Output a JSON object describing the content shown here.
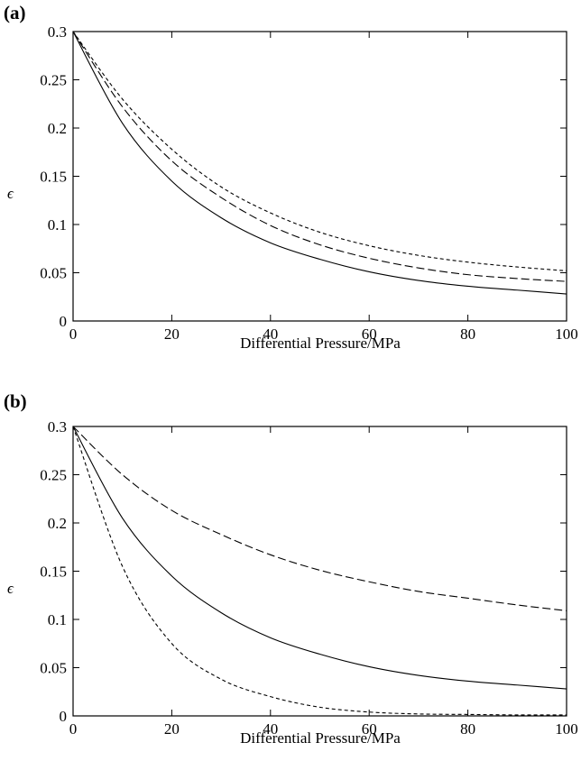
{
  "figure": {
    "panels": [
      {
        "label": "(a)",
        "xlabel": "Differential Pressure/MPa",
        "ylabel": "ϵ"
      },
      {
        "label": "(b)",
        "xlabel": "Differential Pressure/MPa",
        "ylabel": "ϵ"
      }
    ]
  },
  "chart_data": [
    {
      "type": "line",
      "panel": "(a)",
      "xlabel": "Differential Pressure/MPa",
      "ylabel": "ϵ",
      "xlim": [
        0,
        100
      ],
      "ylim": [
        0,
        0.3
      ],
      "xticks": [
        0,
        20,
        40,
        60,
        80,
        100
      ],
      "xtick_labels": [
        "0",
        "20",
        "40",
        "60",
        "80",
        "100"
      ],
      "yticks": [
        0,
        0.05,
        0.1,
        0.15,
        0.2,
        0.25,
        0.3
      ],
      "ytick_labels": [
        "0",
        "0.05",
        "0.1",
        "0.15",
        "0.2",
        "0.25",
        "0.3"
      ],
      "grid": false,
      "x": [
        0,
        10,
        20,
        30,
        40,
        50,
        60,
        70,
        80,
        90,
        100
      ],
      "series": [
        {
          "style": "solid",
          "color": "#000000",
          "values": [
            0.3,
            0.205,
            0.145,
            0.107,
            0.081,
            0.064,
            0.051,
            0.042,
            0.036,
            0.032,
            0.028
          ]
        },
        {
          "style": "long-dash",
          "color": "#000000",
          "values": [
            0.3,
            0.222,
            0.166,
            0.128,
            0.099,
            0.079,
            0.065,
            0.055,
            0.048,
            0.044,
            0.041
          ]
        },
        {
          "style": "short-dash",
          "color": "#000000",
          "values": [
            0.3,
            0.23,
            0.178,
            0.139,
            0.112,
            0.092,
            0.078,
            0.068,
            0.061,
            0.056,
            0.052
          ]
        }
      ]
    },
    {
      "type": "line",
      "panel": "(b)",
      "xlabel": "Differential Pressure/MPa",
      "ylabel": "ϵ",
      "xlim": [
        0,
        100
      ],
      "ylim": [
        0,
        0.3
      ],
      "xticks": [
        0,
        20,
        40,
        60,
        80,
        100
      ],
      "xtick_labels": [
        "0",
        "20",
        "40",
        "60",
        "80",
        "100"
      ],
      "yticks": [
        0,
        0.05,
        0.1,
        0.15,
        0.2,
        0.25,
        0.3
      ],
      "ytick_labels": [
        "0",
        "0.05",
        "0.1",
        "0.15",
        "0.2",
        "0.25",
        "0.3"
      ],
      "grid": false,
      "x": [
        0,
        10,
        20,
        30,
        40,
        50,
        60,
        70,
        80,
        90,
        100
      ],
      "series": [
        {
          "style": "solid",
          "color": "#000000",
          "values": [
            0.3,
            0.205,
            0.145,
            0.107,
            0.081,
            0.064,
            0.051,
            0.042,
            0.036,
            0.032,
            0.028
          ]
        },
        {
          "style": "long-dash",
          "color": "#000000",
          "values": [
            0.3,
            0.25,
            0.213,
            0.188,
            0.167,
            0.151,
            0.139,
            0.129,
            0.122,
            0.115,
            0.109
          ]
        },
        {
          "style": "short-dash",
          "color": "#000000",
          "values": [
            0.3,
            0.155,
            0.075,
            0.038,
            0.02,
            0.009,
            0.004,
            0.002,
            0.0015,
            0.001,
            0.001
          ]
        }
      ]
    }
  ]
}
